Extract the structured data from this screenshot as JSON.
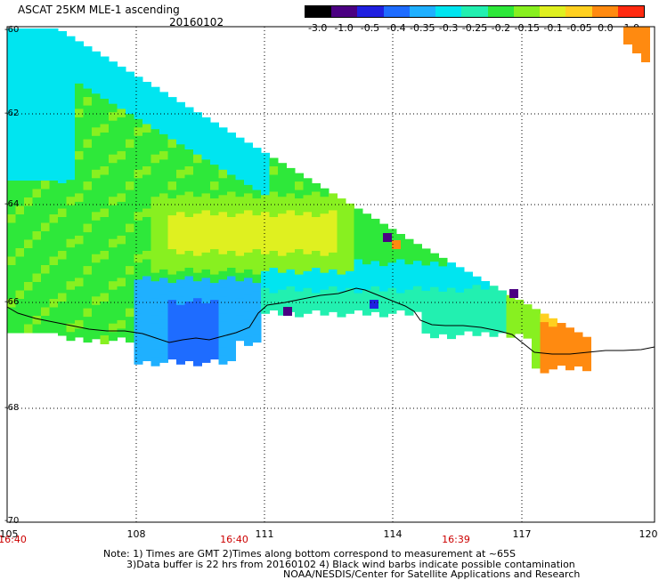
{
  "title": "ASCAT 25KM MLE-1 ascending",
  "date": "20160102",
  "colorbar": {
    "labels": [
      "-3.0",
      "-1.0",
      "-0.5",
      "-0.4",
      "-0.35",
      "-0.3",
      "-0.25",
      "-0.2",
      "-0.15",
      "-0.1",
      "-0.05",
      "0.0",
      "1.0"
    ],
    "colors": [
      "#000000",
      "#4b0082",
      "#2020e0",
      "#1e6cff",
      "#1fb0ff",
      "#00e5f0",
      "#22f0b0",
      "#2ee83a",
      "#88f020",
      "#dff020",
      "#ffd020",
      "#ff8a10",
      "#ff2a10"
    ]
  },
  "axes": {
    "lat_labels": [
      "-60",
      "-62",
      "-64",
      "-66",
      "-68",
      "-70"
    ],
    "lon_labels": [
      "105",
      "108",
      "111",
      "114",
      "117",
      "120"
    ],
    "time_labels": [
      "16:40",
      "16:40",
      "16:39"
    ]
  },
  "notes": {
    "line1": "Note: 1) Times are GMT 2)Times along bottom correspond to measurement at ~65S",
    "line2": "3)Data buffer is 22 hrs from 20160102 4) Black wind barbs indicate possible contamination",
    "line3": "NOAA/NESDIS/Center for Satellite Applications and Research"
  },
  "colors": {
    "coastline": "#000000",
    "grid": "#000000",
    "time_label": "#cc0000"
  }
}
